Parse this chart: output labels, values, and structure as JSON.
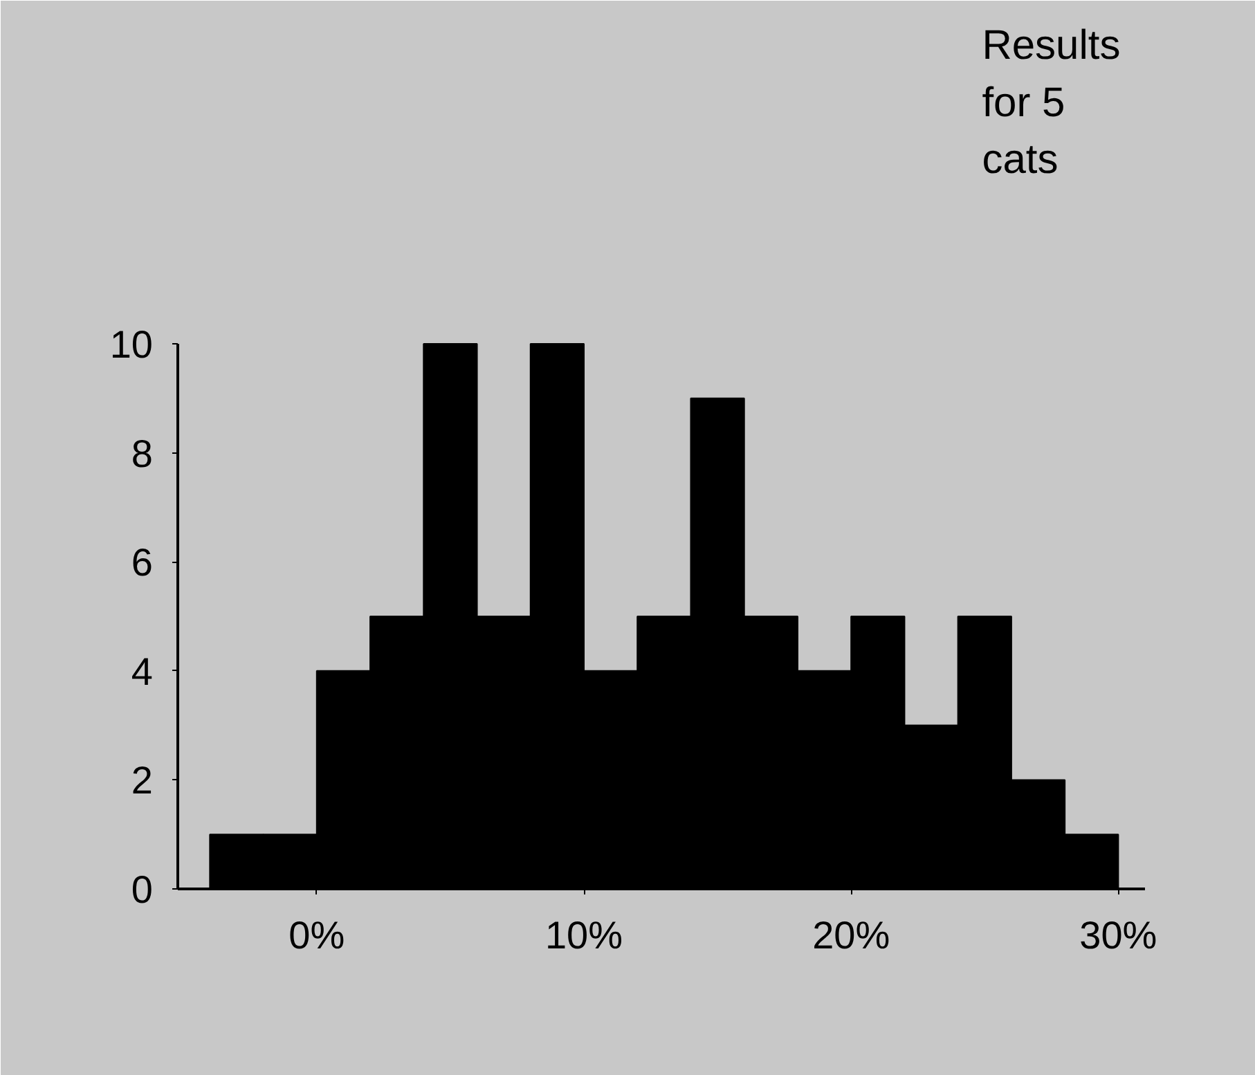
{
  "chart_data": {
    "type": "histogram",
    "bins": [
      -4,
      -2,
      0,
      2,
      4,
      6,
      8,
      10,
      12,
      14,
      16,
      18,
      20,
      22,
      24,
      26,
      28,
      30
    ],
    "values": [
      1,
      1,
      4,
      5,
      10,
      5,
      10,
      4,
      5,
      9,
      5,
      4,
      5,
      3,
      5,
      2,
      1
    ],
    "color": "#000000",
    "xlim": [
      -5.2,
      31
    ],
    "ylim": [
      0,
      10
    ],
    "xticks": [
      {
        "value": 0,
        "label": "0%"
      },
      {
        "value": 10,
        "label": "10%"
      },
      {
        "value": 20,
        "label": "20%"
      },
      {
        "value": 30,
        "label": "30%"
      }
    ],
    "yticks": [
      0,
      2,
      4,
      6,
      8,
      10
    ],
    "annotations": [
      "Results\nfor 5\ncats"
    ],
    "grid": false
  }
}
